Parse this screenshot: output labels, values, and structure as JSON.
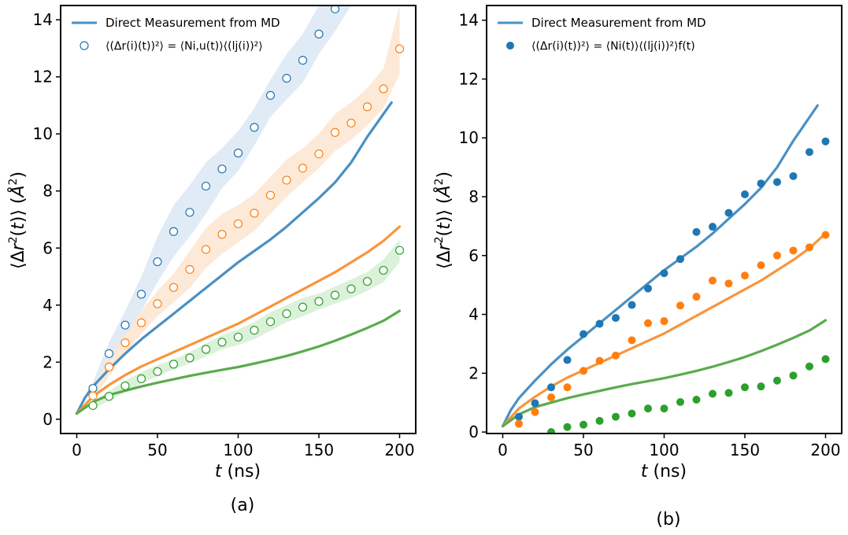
{
  "colors": {
    "blue_line": "#4a90c2",
    "orange_line": "#f8953d",
    "green_line": "#5aab4d",
    "blue": "#1f77b4",
    "orange": "#ff7f0e",
    "green": "#2ca02c",
    "band_blue": "#dce8f4",
    "band_orange": "#fde5d0",
    "band_green": "#d6efd3"
  },
  "chart_data": [
    {
      "type": "line",
      "panel_label": "(a)",
      "xlabel": "t (ns)",
      "ylabel": "⟨Δr²(t)⟩ (Å²)",
      "xlim": [
        -10,
        210
      ],
      "ylim": [
        -0.5,
        14.5
      ],
      "xticks": [
        0,
        50,
        100,
        150,
        200
      ],
      "yticks": [
        0,
        2,
        4,
        6,
        8,
        10,
        12,
        14
      ],
      "grid": false,
      "legend": {
        "position": "top-left",
        "entries": [
          {
            "label": "Direct Measurement from MD",
            "marker": "line"
          },
          {
            "label": "⟨(Δr(i)(t))²⟩ = ⟨Ni,u(t)⟩⟨(lj(i))²⟩",
            "marker": "open-circle"
          }
        ]
      },
      "lines": [
        {
          "color": "blue",
          "x": [
            0,
            5,
            10,
            20,
            30,
            40,
            50,
            60,
            70,
            80,
            90,
            100,
            110,
            120,
            130,
            140,
            150,
            160,
            170,
            180,
            190,
            195
          ],
          "y": [
            0.2,
            0.75,
            1.15,
            1.75,
            2.3,
            2.8,
            3.25,
            3.7,
            4.15,
            4.6,
            5.05,
            5.5,
            5.9,
            6.3,
            6.75,
            7.25,
            7.75,
            8.3,
            9.0,
            9.9,
            10.7,
            11.1
          ]
        },
        {
          "color": "orange",
          "x": [
            0,
            5,
            10,
            20,
            30,
            40,
            50,
            60,
            70,
            80,
            90,
            100,
            110,
            120,
            130,
            140,
            150,
            160,
            170,
            180,
            190,
            200
          ],
          "y": [
            0.2,
            0.5,
            0.8,
            1.2,
            1.55,
            1.85,
            2.1,
            2.35,
            2.6,
            2.85,
            3.1,
            3.35,
            3.65,
            3.95,
            4.25,
            4.55,
            4.85,
            5.15,
            5.5,
            5.85,
            6.25,
            6.75
          ]
        },
        {
          "color": "green",
          "x": [
            0,
            5,
            10,
            20,
            30,
            40,
            50,
            60,
            70,
            80,
            90,
            100,
            110,
            120,
            130,
            140,
            150,
            160,
            170,
            180,
            190,
            200
          ],
          "y": [
            0.2,
            0.4,
            0.6,
            0.85,
            1.0,
            1.15,
            1.28,
            1.4,
            1.52,
            1.63,
            1.73,
            1.83,
            1.95,
            2.08,
            2.22,
            2.38,
            2.55,
            2.75,
            2.97,
            3.2,
            3.45,
            3.8
          ]
        }
      ],
      "bands": [
        {
          "color": "blue",
          "x": [
            10,
            20,
            30,
            40,
            50,
            60,
            70,
            80,
            90,
            100,
            110,
            120,
            130,
            140,
            150,
            160,
            170
          ],
          "lower": [
            0.9,
            1.9,
            2.9,
            3.8,
            4.8,
            5.7,
            6.4,
            7.2,
            8.1,
            8.7,
            9.6,
            10.6,
            11.2,
            11.8,
            12.8,
            13.6,
            14.5
          ],
          "upper": [
            1.3,
            2.7,
            3.8,
            5.0,
            6.4,
            7.5,
            8.2,
            9.0,
            9.5,
            10.1,
            10.9,
            11.9,
            12.8,
            13.5,
            14.5,
            15.2,
            15.5
          ]
        },
        {
          "color": "orange",
          "x": [
            10,
            20,
            30,
            40,
            50,
            60,
            70,
            80,
            90,
            100,
            110,
            120,
            130,
            140,
            150,
            160,
            170,
            180,
            190,
            200
          ],
          "lower": [
            0.7,
            1.5,
            2.3,
            3.0,
            3.6,
            4.1,
            4.6,
            5.3,
            5.8,
            6.2,
            6.6,
            7.2,
            7.8,
            8.3,
            8.8,
            9.4,
            9.8,
            10.3,
            10.9,
            12.1
          ],
          "upper": [
            1.0,
            2.2,
            3.0,
            3.8,
            4.5,
            5.1,
            5.9,
            6.7,
            7.2,
            7.5,
            7.9,
            8.5,
            9.1,
            9.5,
            10.0,
            10.7,
            11.1,
            11.6,
            12.3,
            14.5
          ]
        },
        {
          "color": "green",
          "x": [
            10,
            20,
            30,
            40,
            50,
            60,
            70,
            80,
            90,
            100,
            110,
            120,
            130,
            140,
            150,
            160,
            170,
            180,
            190,
            200
          ],
          "lower": [
            0.35,
            0.65,
            0.95,
            1.25,
            1.5,
            1.75,
            1.95,
            2.2,
            2.45,
            2.6,
            2.8,
            3.1,
            3.4,
            3.6,
            3.85,
            4.05,
            4.25,
            4.5,
            4.8,
            5.5
          ],
          "upper": [
            0.6,
            1.0,
            1.35,
            1.65,
            1.9,
            2.1,
            2.35,
            2.65,
            2.95,
            3.15,
            3.4,
            3.75,
            4.0,
            4.25,
            4.4,
            4.65,
            4.9,
            5.15,
            5.6,
            6.3
          ]
        }
      ],
      "markers": [
        {
          "color": "blue",
          "style": "open",
          "x": [
            10,
            20,
            30,
            40,
            50,
            60,
            70,
            80,
            90,
            100,
            110,
            120,
            130,
            140,
            150,
            160
          ],
          "y": [
            1.08,
            2.3,
            3.3,
            4.38,
            5.52,
            6.58,
            7.25,
            8.17,
            8.77,
            9.33,
            10.23,
            11.35,
            11.95,
            12.58,
            13.5,
            14.38
          ]
        },
        {
          "color": "orange",
          "style": "open",
          "x": [
            10,
            20,
            30,
            40,
            50,
            60,
            70,
            80,
            90,
            100,
            110,
            120,
            130,
            140,
            150,
            160,
            170,
            180,
            190,
            200
          ],
          "y": [
            0.82,
            1.83,
            2.68,
            3.38,
            4.05,
            4.62,
            5.25,
            5.95,
            6.48,
            6.85,
            7.22,
            7.85,
            8.38,
            8.8,
            9.3,
            10.05,
            10.38,
            10.95,
            11.58,
            12.98
          ]
        },
        {
          "color": "green",
          "style": "open",
          "x": [
            10,
            20,
            30,
            40,
            50,
            60,
            70,
            80,
            90,
            100,
            110,
            120,
            130,
            140,
            150,
            160,
            170,
            180,
            190,
            200
          ],
          "y": [
            0.48,
            0.8,
            1.17,
            1.42,
            1.67,
            1.93,
            2.15,
            2.45,
            2.7,
            2.88,
            3.12,
            3.42,
            3.7,
            3.93,
            4.13,
            4.35,
            4.57,
            4.83,
            5.22,
            5.92
          ]
        }
      ]
    },
    {
      "type": "line",
      "panel_label": "(b)",
      "xlabel": "t (ns)",
      "ylabel": "⟨Δr²(t)⟩ (Å²)",
      "xlim": [
        -10,
        210
      ],
      "ylim": [
        -0.05,
        14.5
      ],
      "xticks": [
        0,
        50,
        100,
        150,
        200
      ],
      "yticks": [
        0,
        2,
        4,
        6,
        8,
        10,
        12,
        14
      ],
      "grid": false,
      "legend": {
        "position": "top-left",
        "entries": [
          {
            "label": "Direct Measurement from MD",
            "marker": "line"
          },
          {
            "label": "⟨(Δr(i)(t))²⟩ = ⟨Ni(t)⟩⟨(lj(i))²⟩f(t)",
            "marker": "filled-circle"
          }
        ]
      },
      "lines": [
        {
          "color": "blue",
          "x": [
            0,
            5,
            10,
            20,
            30,
            40,
            50,
            60,
            70,
            80,
            90,
            100,
            110,
            120,
            130,
            140,
            150,
            160,
            170,
            180,
            190,
            195
          ],
          "y": [
            0.2,
            0.75,
            1.15,
            1.75,
            2.3,
            2.8,
            3.25,
            3.7,
            4.15,
            4.6,
            5.05,
            5.5,
            5.9,
            6.3,
            6.75,
            7.25,
            7.75,
            8.3,
            9.0,
            9.9,
            10.7,
            11.1
          ]
        },
        {
          "color": "orange",
          "x": [
            0,
            5,
            10,
            20,
            30,
            40,
            50,
            60,
            70,
            80,
            90,
            100,
            110,
            120,
            130,
            140,
            150,
            160,
            170,
            180,
            190,
            200
          ],
          "y": [
            0.2,
            0.5,
            0.8,
            1.2,
            1.55,
            1.85,
            2.1,
            2.35,
            2.6,
            2.85,
            3.1,
            3.35,
            3.65,
            3.95,
            4.25,
            4.55,
            4.85,
            5.15,
            5.5,
            5.85,
            6.25,
            6.75
          ]
        },
        {
          "color": "green",
          "x": [
            0,
            5,
            10,
            20,
            30,
            40,
            50,
            60,
            70,
            80,
            90,
            100,
            110,
            120,
            130,
            140,
            150,
            160,
            170,
            180,
            190,
            200
          ],
          "y": [
            0.2,
            0.4,
            0.6,
            0.85,
            1.0,
            1.15,
            1.28,
            1.4,
            1.52,
            1.63,
            1.73,
            1.83,
            1.95,
            2.08,
            2.22,
            2.38,
            2.55,
            2.75,
            2.97,
            3.2,
            3.45,
            3.8
          ]
        }
      ],
      "bands": [],
      "markers": [
        {
          "color": "blue",
          "style": "filled",
          "x": [
            10,
            20,
            30,
            40,
            50,
            60,
            70,
            80,
            90,
            100,
            110,
            120,
            130,
            140,
            150,
            160,
            170,
            180,
            190,
            200
          ],
          "y": [
            0.52,
            0.98,
            1.52,
            2.45,
            3.33,
            3.68,
            3.88,
            4.32,
            4.88,
            5.4,
            5.88,
            6.8,
            6.98,
            7.45,
            8.08,
            8.45,
            8.5,
            8.7,
            9.52,
            9.88
          ]
        },
        {
          "color": "orange",
          "style": "filled",
          "x": [
            10,
            20,
            30,
            40,
            50,
            60,
            70,
            80,
            90,
            100,
            110,
            120,
            130,
            140,
            150,
            160,
            170,
            180,
            190,
            200
          ],
          "y": [
            0.28,
            0.68,
            1.18,
            1.52,
            2.08,
            2.42,
            2.6,
            3.12,
            3.7,
            3.77,
            4.3,
            4.6,
            5.15,
            5.05,
            5.32,
            5.67,
            6.0,
            6.17,
            6.28,
            6.7
          ]
        },
        {
          "color": "green",
          "style": "filled",
          "x": [
            30,
            40,
            50,
            60,
            70,
            80,
            90,
            100,
            110,
            120,
            130,
            140,
            150,
            160,
            170,
            180,
            190,
            200
          ],
          "y": [
            0.0,
            0.17,
            0.25,
            0.38,
            0.52,
            0.63,
            0.8,
            0.8,
            1.02,
            1.1,
            1.3,
            1.33,
            1.52,
            1.55,
            1.75,
            1.92,
            2.23,
            2.48
          ]
        }
      ]
    }
  ]
}
